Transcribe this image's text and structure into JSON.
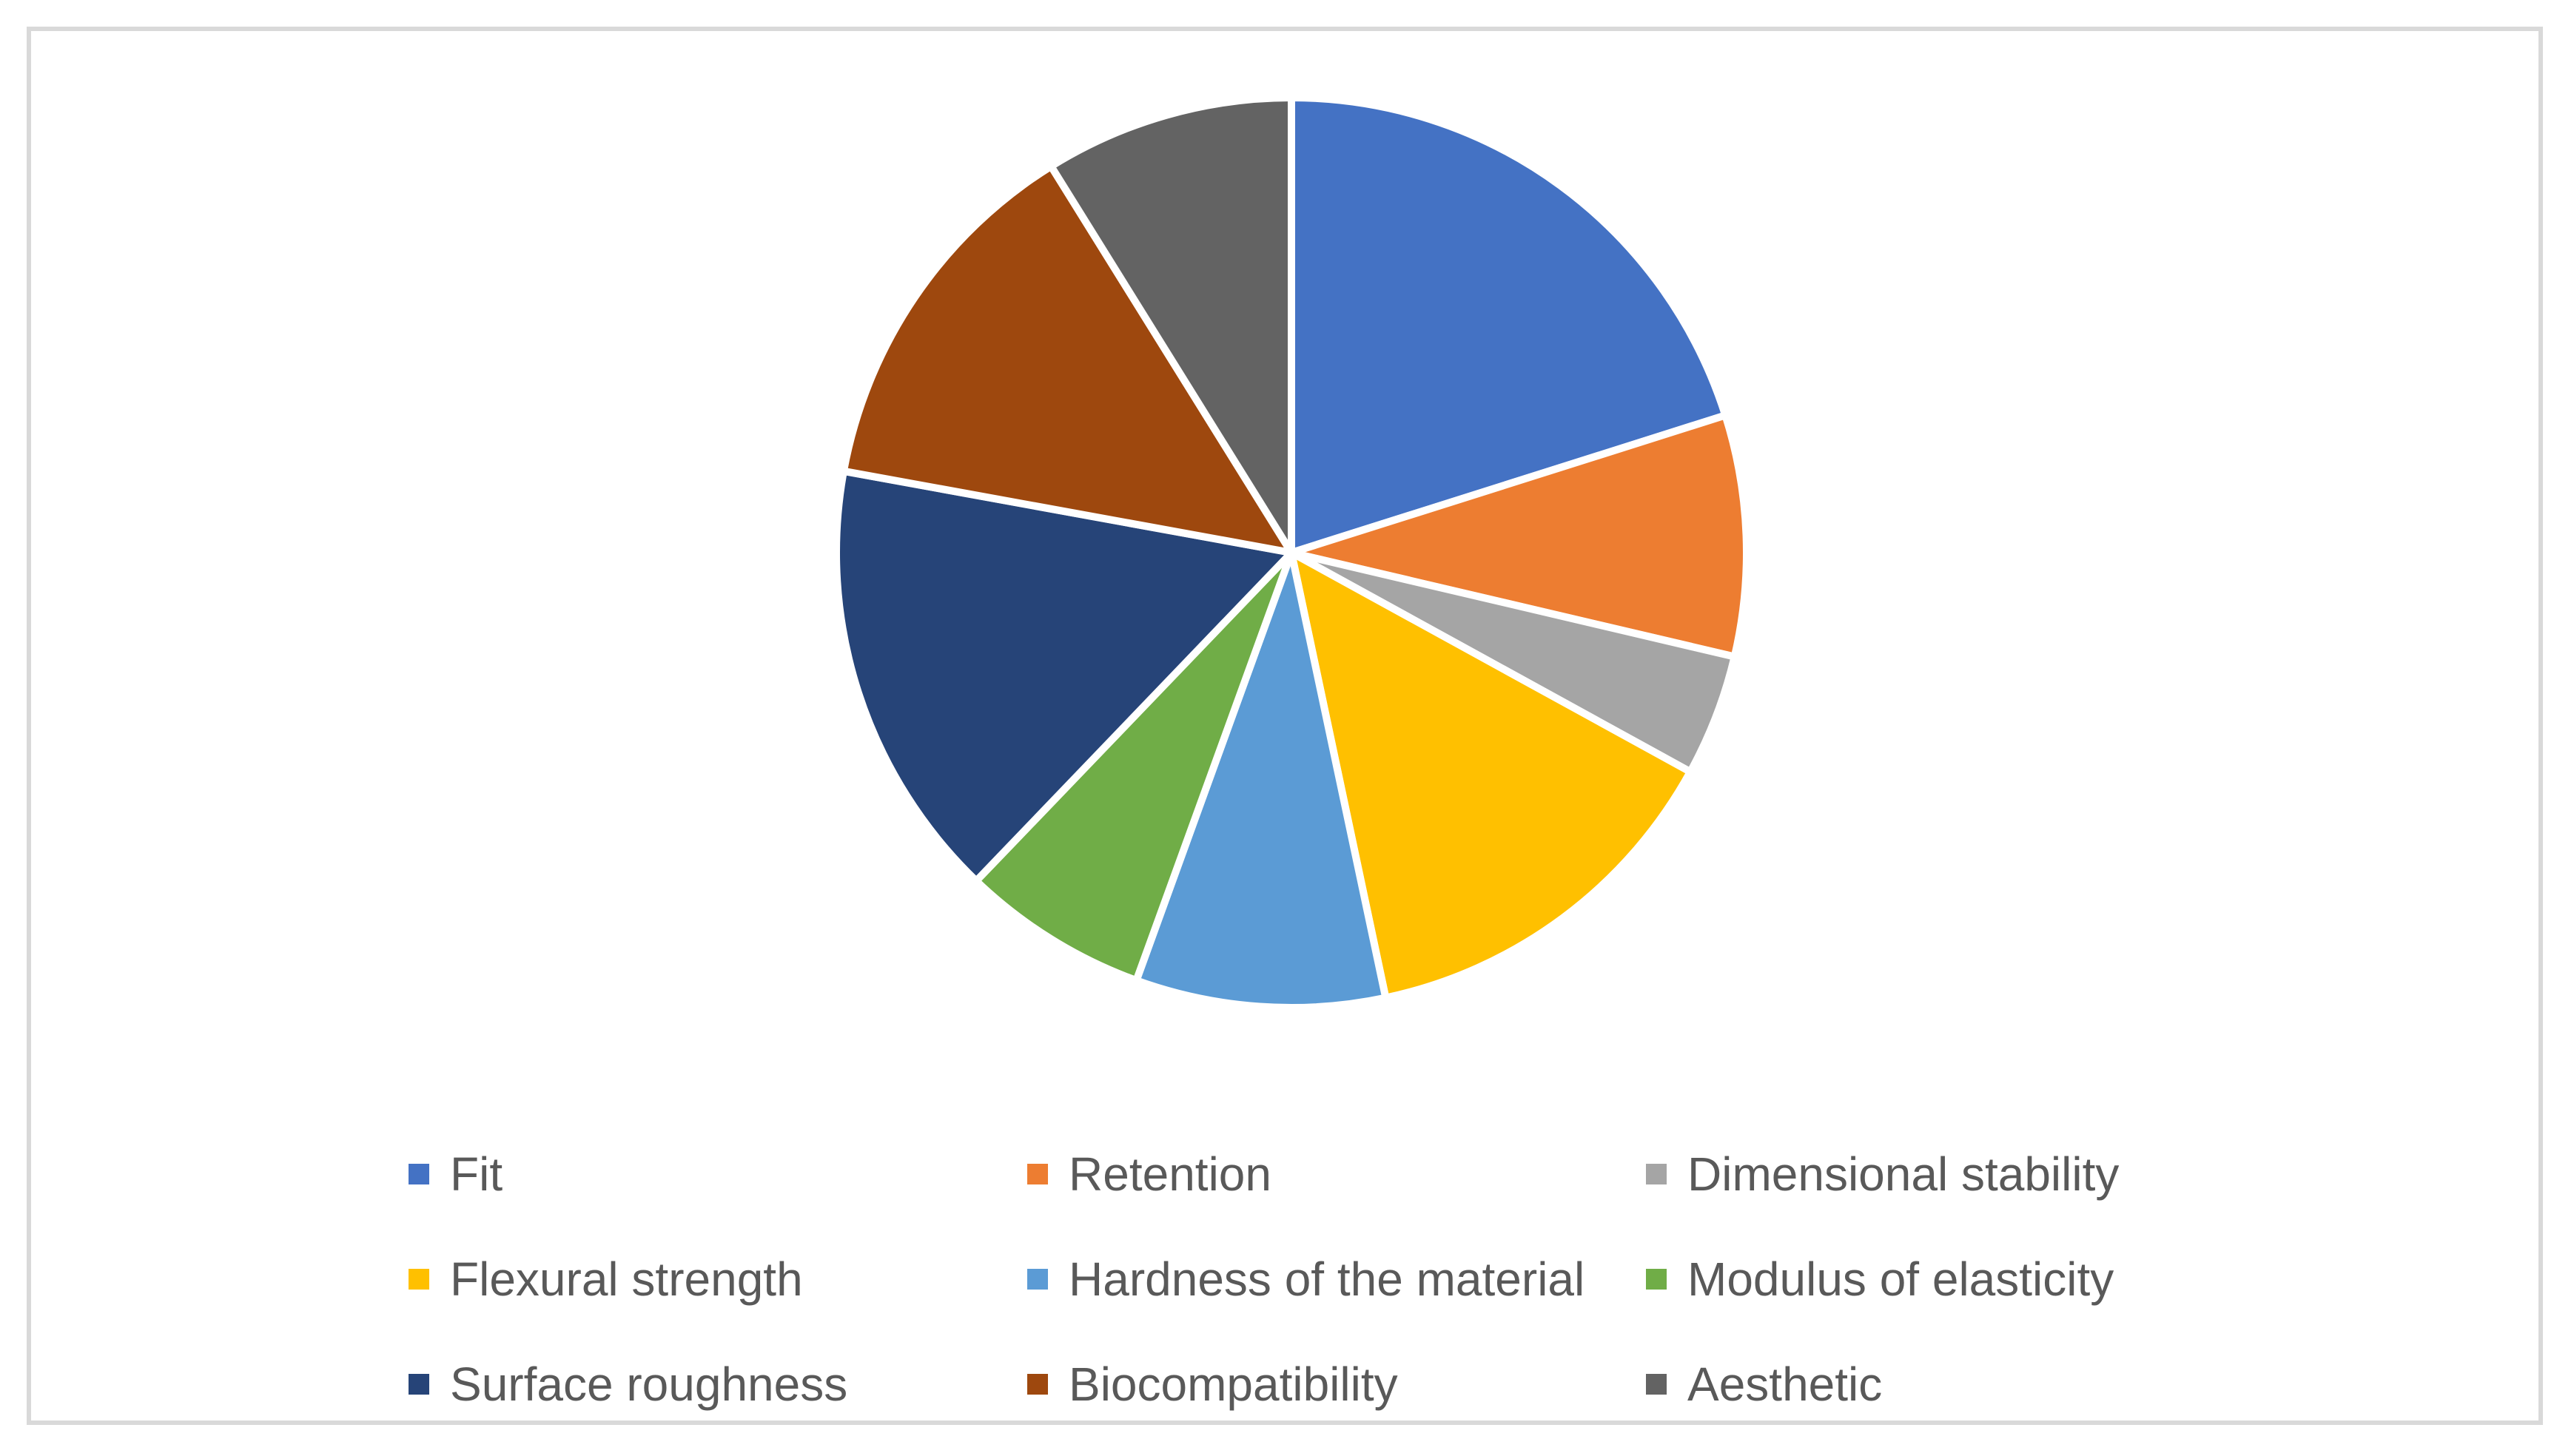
{
  "chart_data": {
    "type": "pie",
    "title": "",
    "legend_position": "bottom",
    "start_angle_deg": 0,
    "direction": "clockwise",
    "slices": [
      {
        "label": "Fit",
        "value": 20,
        "color": "#4472C4"
      },
      {
        "label": "Retention",
        "value": 8.5,
        "color": "#ED7D31"
      },
      {
        "label": "Dimensional stability",
        "value": 4.3,
        "color": "#A5A5A5"
      },
      {
        "label": "Flexural strength",
        "value": 13.6,
        "color": "#FFC000"
      },
      {
        "label": "Hardness of the material",
        "value": 8.8,
        "color": "#5B9BD5"
      },
      {
        "label": "Modulus of elasticity",
        "value": 6.6,
        "color": "#70AD47"
      },
      {
        "label": "Surface roughness",
        "value": 15.6,
        "color": "#264478"
      },
      {
        "label": "Biocompatibility",
        "value": 13.2,
        "color": "#9E480E"
      },
      {
        "label": "Aesthetic",
        "value": 8.8,
        "color": "#636363"
      }
    ]
  }
}
